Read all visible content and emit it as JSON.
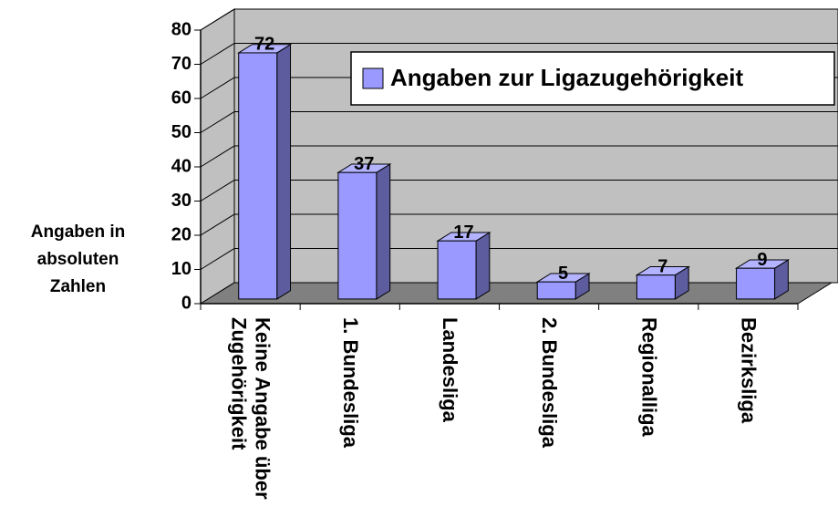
{
  "chart_data": {
    "type": "bar",
    "categories": [
      "Keine Angabe über Zugehörigkeit",
      "1. Bundesliga",
      "Landesliga",
      "2. Bundesliga",
      "Regionalliga",
      "Bezirksliga"
    ],
    "values": [
      72,
      37,
      17,
      5,
      7,
      9
    ],
    "legend": "Angaben zur Ligazugehörigkeit",
    "y_label": "Angaben in absoluten Zahlen",
    "ylim": [
      0,
      80
    ],
    "yticks": [
      0,
      10,
      20,
      30,
      40,
      50,
      60,
      70,
      80
    ],
    "color": "#9999ff",
    "grid": true,
    "legend_position": "upper right"
  }
}
